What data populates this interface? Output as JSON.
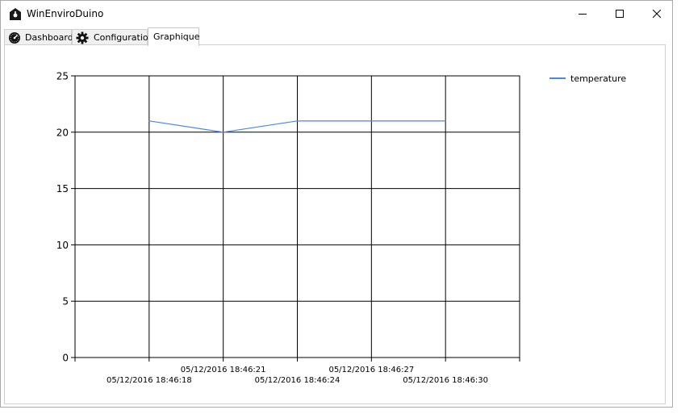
{
  "window": {
    "title": "WinEnviroDuino",
    "buttons": [
      "minimize",
      "maximize",
      "close"
    ]
  },
  "tabs": [
    {
      "label": "Dashboard",
      "icon": "gauge-icon",
      "selected": false
    },
    {
      "label": "Configuration",
      "icon": "gear-icon",
      "selected": false
    },
    {
      "label": "Graphique",
      "icon": "",
      "selected": true
    }
  ],
  "chart_data": {
    "type": "line",
    "title": "",
    "xlabel": "",
    "ylabel": "",
    "ylim": [
      0,
      25
    ],
    "yticks": [
      "0",
      "5",
      "10",
      "15",
      "20",
      "25"
    ],
    "xtick_labels": [
      "05/12/2016 18:46:18",
      "05/12/2016 18:46:21",
      "05/12/2016 18:46:24",
      "05/12/2016 18:46:27",
      "05/12/2016 18:46:30"
    ],
    "grid": true,
    "legend_position": "top-right",
    "series": [
      {
        "name": "temperature",
        "color": "#4a86e8",
        "x": [
          "05/12/2016 18:46:18",
          "05/12/2016 18:46:21",
          "05/12/2016 18:46:24",
          "05/12/2016 18:46:27",
          "05/12/2016 18:46:30"
        ],
        "values": [
          21,
          20,
          21,
          21,
          21
        ]
      }
    ]
  }
}
